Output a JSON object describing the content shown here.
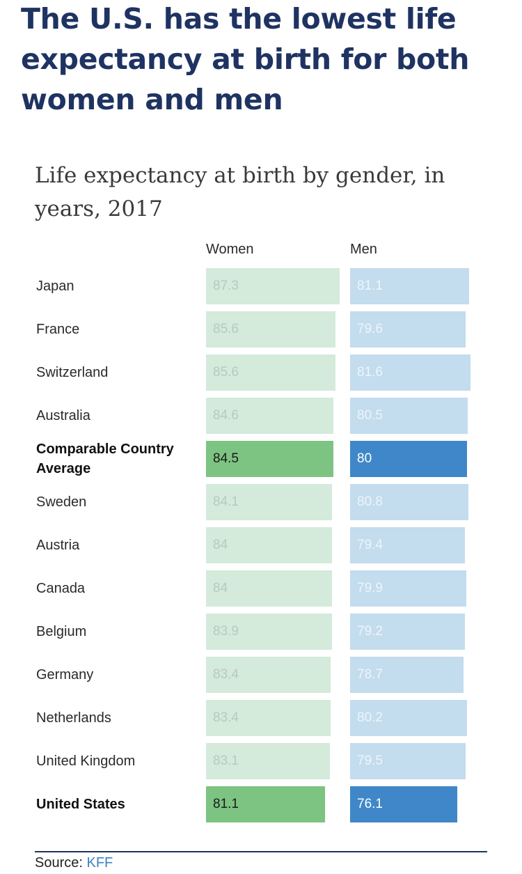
{
  "headline": "The U.S. has the lowest life expectancy at birth for both women and men",
  "colors": {
    "women_light": "#d4eadb",
    "women_highlight": "#7dc382",
    "men_light": "#c3dcee",
    "men_highlight": "#3f87c8",
    "light_value_text_women": "#b9c9be",
    "light_value_text_men": "#eef5fb",
    "headline": "#1f3362",
    "link": "#3a82c4"
  },
  "chart_data": {
    "type": "bar",
    "title": "Life expectancy at birth by gender, in years, 2017",
    "categories": [
      "Japan",
      "France",
      "Switzerland",
      "Australia",
      "Comparable Country Average",
      "Sweden",
      "Austria",
      "Canada",
      "Belgium",
      "Germany",
      "Netherlands",
      "United Kingdom",
      "United States"
    ],
    "highlighted": [
      "Comparable Country Average",
      "United States"
    ],
    "series": [
      {
        "name": "Women",
        "values": [
          87.3,
          85.6,
          85.6,
          84.6,
          84.5,
          84.1,
          84,
          84,
          83.9,
          83.4,
          83.4,
          83.1,
          81.1
        ]
      },
      {
        "name": "Men",
        "values": [
          81.1,
          79.6,
          81.6,
          80.5,
          80,
          80.8,
          79.4,
          79.9,
          79.2,
          78.7,
          80.2,
          79.5,
          76.1
        ]
      }
    ]
  },
  "source": {
    "label": "Source: ",
    "link_text": "KFF"
  }
}
